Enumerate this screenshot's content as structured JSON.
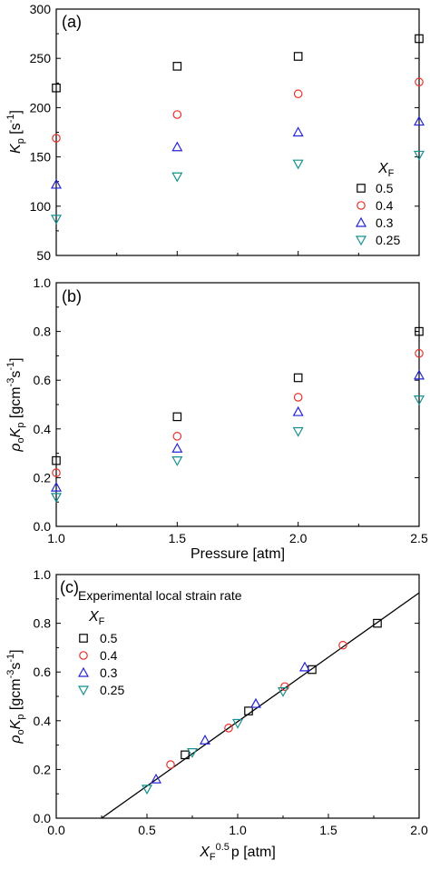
{
  "chart_data": [
    {
      "type": "scatter",
      "panel_label": "(a)",
      "ylabel_main": "K",
      "ylabel_sub": "p",
      "ylabel_unit": " [s",
      "ylabel_sup": "-1",
      "ylabel_close": "]",
      "xlim": [
        1.0,
        2.5
      ],
      "ylim": [
        50,
        300
      ],
      "yticks": [
        50,
        100,
        150,
        200,
        250,
        300
      ],
      "x": [
        1.0,
        1.5,
        2.0,
        2.5
      ],
      "legend": {
        "title_main": "X",
        "title_sub": "F",
        "position": "bottom-right"
      },
      "series": [
        {
          "name": "0.5",
          "marker": "square",
          "color": "#000000",
          "values": [
            220,
            242,
            252,
            270
          ]
        },
        {
          "name": "0.4",
          "marker": "circle",
          "color": "#e8302a",
          "values": [
            169,
            193,
            214,
            226
          ]
        },
        {
          "name": "0.3",
          "marker": "triangle-up",
          "color": "#2424d6",
          "values": [
            122,
            160,
            175,
            186
          ]
        },
        {
          "name": "0.25",
          "marker": "triangle-down",
          "color": "#17918f",
          "values": [
            87,
            130,
            143,
            152
          ]
        }
      ]
    },
    {
      "type": "scatter",
      "panel_label": "(b)",
      "ylabel_pre": "ρ",
      "ylabel_pre_sub": "o",
      "ylabel_main": "K",
      "ylabel_sub": "p",
      "ylabel_unit": " [gcm",
      "ylabel_sup": "-3",
      "ylabel_unit2": "s",
      "ylabel_sup2": "-1",
      "ylabel_close": "]",
      "xlabel": "Pressure [atm]",
      "xlim": [
        1.0,
        2.5
      ],
      "ylim": [
        0.0,
        1.0
      ],
      "xticks": [
        "1.0",
        "1.5",
        "2.0",
        "2.5"
      ],
      "yticks": [
        "0.0",
        "0.2",
        "0.4",
        "0.6",
        "0.8",
        "1.0"
      ],
      "x": [
        1.0,
        1.5,
        2.0,
        2.5
      ],
      "series": [
        {
          "name": "0.5",
          "marker": "square",
          "color": "#000000",
          "values": [
            0.27,
            0.45,
            0.61,
            0.8
          ]
        },
        {
          "name": "0.4",
          "marker": "circle",
          "color": "#e8302a",
          "values": [
            0.22,
            0.37,
            0.53,
            0.71
          ]
        },
        {
          "name": "0.3",
          "marker": "triangle-up",
          "color": "#2424d6",
          "values": [
            0.16,
            0.32,
            0.47,
            0.62
          ]
        },
        {
          "name": "0.25",
          "marker": "triangle-down",
          "color": "#17918f",
          "values": [
            0.12,
            0.27,
            0.39,
            0.52
          ]
        }
      ]
    },
    {
      "type": "scatter",
      "panel_label": "(c)",
      "ylabel_pre": "ρ",
      "ylabel_pre_sub": "o",
      "ylabel_main": "K",
      "ylabel_sub": "p",
      "ylabel_unit": " [gcm",
      "ylabel_sup": "-3",
      "ylabel_unit2": "s",
      "ylabel_sup2": "-1",
      "ylabel_close": "]",
      "xlabel_main": "X",
      "xlabel_sub": "F",
      "xlabel_sup": "0.5",
      "xlabel_rest": "p [atm]",
      "xlim": [
        0.0,
        2.0
      ],
      "ylim": [
        0.0,
        1.0
      ],
      "xticks": [
        "0.0",
        "0.5",
        "1.0",
        "1.5",
        "2.0"
      ],
      "yticks": [
        "0.0",
        "0.2",
        "0.4",
        "0.6",
        "0.8",
        "1.0"
      ],
      "legend": {
        "heading": "Experimental local strain rate",
        "title_main": "X",
        "title_sub": "F",
        "position": "top-left"
      },
      "series": [
        {
          "name": "0.5",
          "marker": "square",
          "color": "#000000",
          "x": [
            0.71,
            1.06,
            1.41,
            1.77
          ],
          "values": [
            0.26,
            0.44,
            0.61,
            0.8
          ]
        },
        {
          "name": "0.4",
          "marker": "circle",
          "color": "#e8302a",
          "x": [
            0.63,
            0.95,
            1.26,
            1.58
          ],
          "values": [
            0.22,
            0.37,
            0.54,
            0.71
          ]
        },
        {
          "name": "0.3",
          "marker": "triangle-up",
          "color": "#2424d6",
          "x": [
            0.55,
            0.82,
            1.1,
            1.37
          ],
          "values": [
            0.16,
            0.32,
            0.47,
            0.62
          ]
        },
        {
          "name": "0.25",
          "marker": "triangle-down",
          "color": "#17918f",
          "x": [
            0.5,
            0.75,
            1.0,
            1.25
          ],
          "values": [
            0.12,
            0.27,
            0.39,
            0.52
          ]
        }
      ],
      "fit_line": {
        "x": [
          0.25,
          2.0
        ],
        "y": [
          0.0,
          0.925
        ],
        "color": "#000000"
      }
    }
  ]
}
